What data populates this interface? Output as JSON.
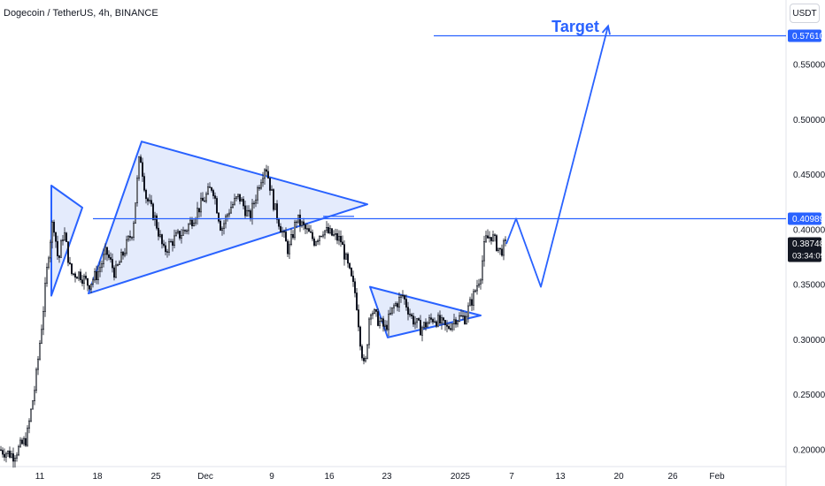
{
  "header": {
    "symbol": "Dogecoin / TetherUS, 4h, BINANCE"
  },
  "currency_badge": "USDT",
  "colors": {
    "up": "#131722",
    "down": "#131722",
    "drawing": "#2962ff",
    "fill": "#dbe4fb",
    "target_label": "#2962ff"
  },
  "chart_data": {
    "type": "candlestick",
    "title": "",
    "annotation_target": "Target",
    "ylim": [
      0.18,
      0.6
    ],
    "y_ticks": [
      "0.20000",
      "0.25000",
      "0.30000",
      "0.35000",
      "0.40000",
      "0.45000",
      "0.50000",
      "0.55000"
    ],
    "x_ticks": [
      "11",
      "18",
      "25",
      "Dec",
      "9",
      "16",
      "23",
      "2025",
      "7",
      "13",
      "20",
      "26",
      "Feb"
    ],
    "price_labels": [
      {
        "value": "0.57610",
        "price": 0.5761,
        "style": "filled"
      },
      {
        "value": "0.40989",
        "price": 0.40989,
        "style": "filled"
      },
      {
        "value": "0.38748",
        "price": 0.38748,
        "style": "current"
      }
    ],
    "countdown": "03:34:09",
    "price_path": [
      [
        0,
        0.2
      ],
      [
        15,
        0.195
      ],
      [
        30,
        0.21
      ],
      [
        40,
        0.26
      ],
      [
        48,
        0.32
      ],
      [
        55,
        0.38
      ],
      [
        60,
        0.41
      ],
      [
        66,
        0.37
      ],
      [
        72,
        0.4
      ],
      [
        80,
        0.36
      ],
      [
        90,
        0.36
      ],
      [
        100,
        0.35
      ],
      [
        110,
        0.36
      ],
      [
        120,
        0.38
      ],
      [
        130,
        0.36
      ],
      [
        140,
        0.38
      ],
      [
        150,
        0.4
      ],
      [
        158,
        0.47
      ],
      [
        165,
        0.43
      ],
      [
        175,
        0.41
      ],
      [
        185,
        0.38
      ],
      [
        195,
        0.39
      ],
      [
        210,
        0.4
      ],
      [
        225,
        0.42
      ],
      [
        240,
        0.44
      ],
      [
        250,
        0.4
      ],
      [
        260,
        0.42
      ],
      [
        270,
        0.43
      ],
      [
        282,
        0.41
      ],
      [
        292,
        0.44
      ],
      [
        300,
        0.46
      ],
      [
        310,
        0.42
      ],
      [
        318,
        0.4
      ],
      [
        326,
        0.38
      ],
      [
        335,
        0.41
      ],
      [
        345,
        0.4
      ],
      [
        355,
        0.39
      ],
      [
        365,
        0.4
      ],
      [
        375,
        0.395
      ],
      [
        385,
        0.39
      ],
      [
        395,
        0.36
      ],
      [
        402,
        0.34
      ],
      [
        407,
        0.3
      ],
      [
        412,
        0.27
      ],
      [
        418,
        0.33
      ],
      [
        425,
        0.32
      ],
      [
        435,
        0.31
      ],
      [
        445,
        0.33
      ],
      [
        455,
        0.34
      ],
      [
        465,
        0.32
      ],
      [
        475,
        0.31
      ],
      [
        490,
        0.32
      ],
      [
        505,
        0.31
      ],
      [
        515,
        0.32
      ],
      [
        525,
        0.32
      ],
      [
        535,
        0.34
      ],
      [
        543,
        0.36
      ],
      [
        548,
        0.39
      ],
      [
        555,
        0.395
      ],
      [
        565,
        0.38
      ],
      [
        572,
        0.387
      ]
    ],
    "triangles": [
      [
        [
          58,
          0.44
        ],
        [
          93,
          0.42
        ],
        [
          58,
          0.34
        ]
      ],
      [
        [
          160,
          0.48
        ],
        [
          415,
          0.423
        ],
        [
          100,
          0.342
        ]
      ],
      [
        [
          418,
          0.348
        ],
        [
          543,
          0.322
        ],
        [
          438,
          0.302
        ]
      ]
    ],
    "projection": [
      [
        572,
        0.387
      ],
      [
        583,
        0.41
      ],
      [
        611,
        0.348
      ],
      [
        687,
        0.585
      ]
    ],
    "horizontal_lines": [
      {
        "price": 0.5761,
        "x1": 490,
        "x2": 888
      },
      {
        "price": 0.40989,
        "x1": 105,
        "x2": 888
      },
      {
        "price": 0.412,
        "x1": 365,
        "x2": 400
      }
    ]
  }
}
